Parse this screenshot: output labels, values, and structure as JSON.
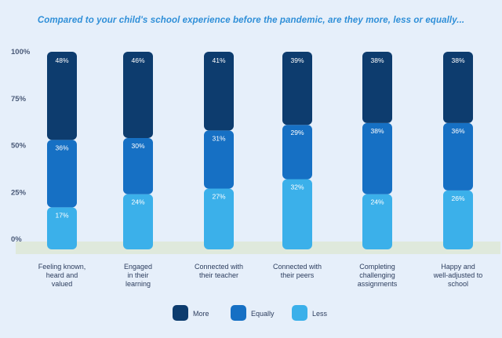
{
  "chart_data": {
    "type": "bar",
    "stacked": true,
    "title": "Compared to your child's school experience before the pandemic, are they more, less or equally...",
    "xlabel": "",
    "ylabel": "",
    "ylim": [
      0,
      100
    ],
    "yticks": [
      "0%",
      "25%",
      "50%",
      "75%",
      "100%"
    ],
    "categories": [
      [
        "Feeling known,",
        "heard and",
        "valued"
      ],
      [
        "Engaged",
        "in their",
        "learning"
      ],
      [
        "Connected with",
        "their teacher"
      ],
      [
        "Connected with",
        "their peers"
      ],
      [
        "Completing",
        "challenging",
        "assignments"
      ],
      [
        "Happy and",
        "well-adjusted to",
        "school"
      ]
    ],
    "series": [
      {
        "name": "Less",
        "color": "#3bb0ea",
        "values": [
          17,
          24,
          27,
          32,
          24,
          26
        ]
      },
      {
        "name": "Equally",
        "color": "#1670c4",
        "values": [
          36,
          30,
          31,
          29,
          38,
          36
        ]
      },
      {
        "name": "More",
        "color": "#0d3c6e",
        "values": [
          48,
          46,
          41,
          39,
          38,
          38
        ]
      }
    ],
    "legend": [
      "More",
      "Equally",
      "Less"
    ],
    "legend_position": "bottom"
  }
}
